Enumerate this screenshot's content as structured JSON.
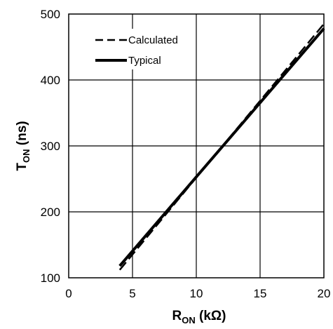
{
  "chart_data": {
    "type": "line",
    "title": "",
    "xlabel": {
      "main": "R",
      "sub": "ON",
      "unit": " (kΩ)"
    },
    "ylabel": {
      "main": "T",
      "sub": "ON",
      "unit": " (ns)"
    },
    "xlim": [
      0,
      20
    ],
    "ylim": [
      100,
      500
    ],
    "xticks": [
      0,
      5,
      10,
      15,
      20
    ],
    "yticks": [
      100,
      200,
      300,
      400,
      500
    ],
    "grid": true,
    "legend_position": "top-left",
    "series": [
      {
        "name": "Calculated",
        "style": "dashed",
        "x": [
          4,
          20
        ],
        "y": [
          112,
          485
        ]
      },
      {
        "name": "Typical",
        "style": "solid",
        "x": [
          4,
          20
        ],
        "y": [
          118,
          478
        ]
      }
    ]
  }
}
